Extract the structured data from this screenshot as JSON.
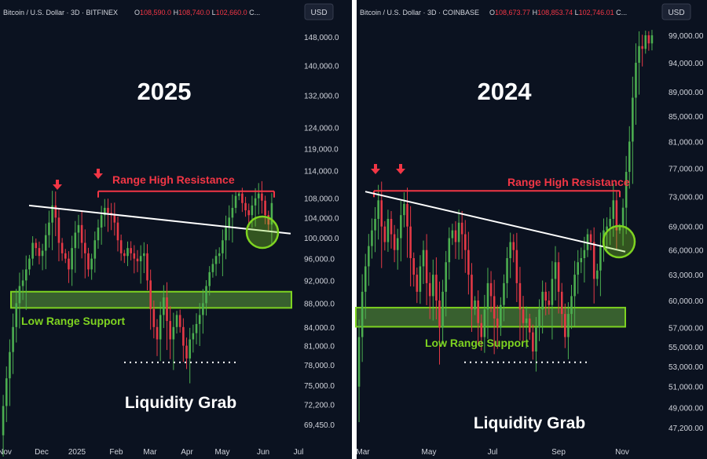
{
  "chart_data": [
    {
      "type": "candlestick",
      "symbol": "Bitcoin / U.S. Dollar · 3D · BITFINEX",
      "ohlc": {
        "o": "108,590.0",
        "h": "108,740.0",
        "l": "102,660.0",
        "c": "C..."
      },
      "currency": "USD",
      "year_label": "2025",
      "x_ticks": [
        "Nov",
        "Dec",
        "2025",
        "Feb",
        "Mar",
        "Apr",
        "May",
        "Jun",
        "Jul"
      ],
      "y_ticks": [
        "148,000.0",
        "140,000.0",
        "132,000.0",
        "124,000.0",
        "119,000.0",
        "114,000.0",
        "108,000.0",
        "104,000.0",
        "100,000.0",
        "96,000.0",
        "92,000.0",
        "88,000.0",
        "84,000.0",
        "81,000.0",
        "78,000.0",
        "75,000.0",
        "72,200.0",
        "69,450.0"
      ],
      "y_tick_values": [
        148000,
        140000,
        132000,
        124000,
        119000,
        114000,
        108000,
        104000,
        100000,
        96000,
        92000,
        88000,
        84000,
        81000,
        78000,
        75000,
        72200,
        69450
      ],
      "log_scale": true,
      "annotations": {
        "resistance": "Range High Resistance",
        "support": "Low Range Support",
        "liquidity": "Liquidity Grab"
      },
      "levels": {
        "resistance": 109500,
        "support_top": 90000,
        "support_bottom": 87200,
        "liquidity": 78400
      },
      "trendline": [
        [
          104000,
          101000
        ],
        [
          108000,
          101000
        ]
      ],
      "trend_from": 106500,
      "trend_to": 100800,
      "path": [
        68000,
        72000,
        76000,
        80000,
        84000,
        88000,
        91000,
        92000,
        94000,
        96000,
        99000,
        98000,
        96500,
        97500,
        100500,
        103000,
        106500,
        104000,
        99000,
        97000,
        96000,
        94000,
        98000,
        101000,
        102500,
        99000,
        97000,
        94000,
        96000,
        99500,
        102000,
        104500,
        106000,
        105000,
        104500,
        103000,
        99500,
        97000,
        96500,
        98000,
        97000,
        96000,
        95500,
        96500,
        97000,
        92000,
        87000,
        84000,
        82000,
        86000,
        89000,
        85000,
        82000,
        84000,
        86000,
        84000,
        81000,
        79000,
        82000,
        83000,
        84500,
        86000,
        88000,
        91000,
        93500,
        95000,
        96500,
        97000,
        99500,
        102000,
        104000,
        106000,
        108500,
        109000,
        107000,
        105500,
        104500,
        106500,
        108000,
        109000,
        107500,
        104500,
        102600,
        107000
      ]
    },
    {
      "type": "candlestick",
      "symbol": "Bitcoin / U.S. Dollar · 3D · COINBASE",
      "ohlc": {
        "o": "108,673.77",
        "h": "108,853.74",
        "l": "102,746.01",
        "c": "C..."
      },
      "currency": "USD",
      "year_label": "2024",
      "x_ticks": [
        "Mar",
        "May",
        "Jul",
        "Sep",
        "Nov"
      ],
      "y_ticks": [
        "99,000.00",
        "94,000.00",
        "89,000.00",
        "85,000.00",
        "81,000.00",
        "77,000.00",
        "73,000.00",
        "69,000.00",
        "66,000.00",
        "63,000.00",
        "60,000.00",
        "57,000.00",
        "55,000.00",
        "53,000.00",
        "51,000.00",
        "49,000.00",
        "47,200.00"
      ],
      "y_tick_values": [
        99000,
        94000,
        89000,
        85000,
        81000,
        77000,
        73000,
        69000,
        66000,
        63000,
        60000,
        57000,
        55000,
        53000,
        51000,
        49000,
        47200
      ],
      "log_scale": true,
      "annotations": {
        "resistance": "Range High Resistance",
        "support": "Low Range Support",
        "liquidity": "Liquidity Grab"
      },
      "levels": {
        "resistance": 73800,
        "support_top": 59200,
        "support_bottom": 57100,
        "liquidity": 53400
      },
      "trend_from": 73700,
      "trend_to": 65800,
      "path": [
        51000,
        56000,
        61000,
        64000,
        66500,
        68500,
        70000,
        72500,
        69000,
        67000,
        70000,
        68000,
        66000,
        67500,
        70500,
        72000,
        69000,
        65000,
        63000,
        61000,
        64000,
        66000,
        62000,
        60500,
        63000,
        60000,
        57000,
        61000,
        64500,
        67500,
        68500,
        67000,
        69500,
        68000,
        66000,
        63000,
        59000,
        60000,
        57500,
        56000,
        59000,
        62000,
        60500,
        58000,
        57000,
        59500,
        62000,
        65000,
        67000,
        66000,
        62000,
        59000,
        57500,
        58000,
        56500,
        54500,
        57000,
        59000,
        61000,
        60000,
        59500,
        62500,
        64500,
        61000,
        58500,
        56000,
        58500,
        60500,
        63000,
        64500,
        65000,
        66000,
        68000,
        67000,
        62500,
        63500,
        66500,
        68500,
        69000,
        70000,
        72500,
        68500,
        69000,
        71500,
        76500,
        81000,
        88000,
        94000,
        97000,
        96500,
        99000,
        97500,
        99000
      ]
    }
  ]
}
